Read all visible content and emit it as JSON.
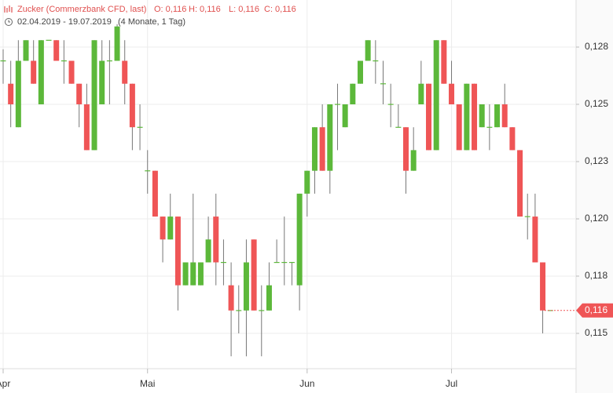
{
  "chart_data": {
    "type": "candlestick",
    "title": "Zucker (Commerzbank CFD, last)",
    "ohlc_labels": [
      "O: 0,116",
      "H: 0,116",
      "L: 0,116",
      "C: 0,116"
    ],
    "period": "02.04.2019 - 19.07.2019",
    "period_length": "(4 Monate, 1 Tag)",
    "up_color": "#5cb83a",
    "down_color": "#ef5556",
    "grid": true,
    "ylim": [
      0.1135,
      0.1295
    ],
    "yticks": [
      {
        "value": 0.1275,
        "label": "0,128"
      },
      {
        "value": 0.125,
        "label": "0,125"
      },
      {
        "value": 0.1225,
        "label": "0,123"
      },
      {
        "value": 0.12,
        "label": "0,120"
      },
      {
        "value": 0.1175,
        "label": "0,118"
      },
      {
        "value": 0.115,
        "label": "0,115"
      }
    ],
    "last": {
      "value": 0.116,
      "label": "0,116"
    },
    "categories": [
      "Apr",
      null,
      null,
      null,
      null,
      null,
      null,
      null,
      null,
      null,
      null,
      null,
      null,
      null,
      null,
      null,
      null,
      null,
      null,
      "Mai",
      null,
      null,
      null,
      null,
      null,
      null,
      null,
      null,
      null,
      null,
      null,
      null,
      null,
      null,
      null,
      null,
      null,
      null,
      null,
      null,
      "Jun",
      null,
      null,
      null,
      null,
      null,
      null,
      null,
      null,
      null,
      null,
      null,
      null,
      null,
      null,
      null,
      null,
      null,
      null,
      "Jul",
      null,
      null,
      null,
      null,
      null,
      null,
      null,
      null,
      null,
      null,
      null,
      null,
      null
    ],
    "open": [
      0.1269,
      0.1259,
      0.124,
      0.1269,
      0.1269,
      0.125,
      0.1278,
      0.1278,
      0.1269,
      0.1269,
      0.1259,
      0.125,
      0.123,
      0.125,
      0.1269,
      0.1269,
      0.1269,
      0.1259,
      0.124,
      0.1221,
      0.1221,
      0.1201,
      0.1191,
      0.1201,
      0.1171,
      0.1171,
      0.1171,
      0.1181,
      0.1201,
      0.1181,
      0.1171,
      0.116,
      0.116,
      0.1191,
      0.116,
      0.116,
      0.1181,
      0.1181,
      0.1181,
      0.1171,
      0.1211,
      0.1221,
      0.124,
      0.1221,
      0.125,
      0.124,
      0.125,
      0.1259,
      0.1269,
      0.1269,
      0.1259,
      0.125,
      0.124,
      0.124,
      0.1221,
      0.125,
      0.1259,
      0.123,
      0.1278,
      0.1259,
      0.125,
      0.123,
      0.1259,
      0.124,
      0.124,
      0.124,
      0.125,
      0.124,
      0.123,
      0.1201,
      0.1201,
      0.1181,
      0.116
    ],
    "high": [
      0.1274,
      0.1269,
      0.1278,
      0.1278,
      0.1278,
      0.1278,
      0.1278,
      0.1278,
      0.1278,
      0.1269,
      0.1259,
      0.1259,
      0.1278,
      0.1278,
      0.1278,
      0.1285,
      0.1278,
      0.1259,
      0.125,
      0.123,
      0.1221,
      0.1201,
      0.1211,
      0.1201,
      0.1181,
      0.1211,
      0.1181,
      0.1201,
      0.1211,
      0.1191,
      0.1181,
      0.1171,
      0.1191,
      0.1191,
      0.1171,
      0.1181,
      0.1191,
      0.1201,
      0.1181,
      0.1211,
      0.1221,
      0.124,
      0.125,
      0.125,
      0.1259,
      0.125,
      0.1259,
      0.1269,
      0.1278,
      0.1278,
      0.1269,
      0.1259,
      0.125,
      0.124,
      0.124,
      0.1269,
      0.1259,
      0.1278,
      0.1278,
      0.1269,
      0.125,
      0.1259,
      0.1259,
      0.125,
      0.125,
      0.125,
      0.1259,
      0.124,
      0.123,
      0.1211,
      0.1211,
      0.1181,
      0.116
    ],
    "low": [
      0.1259,
      0.124,
      0.124,
      0.1269,
      0.1259,
      0.125,
      0.1278,
      0.1269,
      0.1259,
      0.1259,
      0.124,
      0.123,
      0.123,
      0.125,
      0.125,
      0.1269,
      0.125,
      0.123,
      0.123,
      0.1211,
      0.1201,
      0.1181,
      0.1191,
      0.116,
      0.1171,
      0.1171,
      0.1171,
      0.1181,
      0.1171,
      0.1171,
      0.114,
      0.115,
      0.114,
      0.116,
      0.114,
      0.116,
      0.1181,
      0.1171,
      0.1171,
      0.116,
      0.1201,
      0.1211,
      0.1221,
      0.1211,
      0.123,
      0.124,
      0.125,
      0.1259,
      0.1269,
      0.1259,
      0.125,
      0.124,
      0.124,
      0.1211,
      0.1221,
      0.125,
      0.123,
      0.123,
      0.1259,
      0.125,
      0.123,
      0.123,
      0.123,
      0.124,
      0.123,
      0.124,
      0.124,
      0.123,
      0.1201,
      0.1191,
      0.1181,
      0.115,
      0.116
    ],
    "close": [
      0.1269,
      0.125,
      0.1269,
      0.1278,
      0.1259,
      0.1278,
      0.1278,
      0.1269,
      0.1269,
      0.1259,
      0.125,
      0.123,
      0.1278,
      0.1269,
      0.1269,
      0.1284,
      0.1259,
      0.124,
      0.124,
      0.1221,
      0.1201,
      0.1191,
      0.1201,
      0.1171,
      0.1181,
      0.1181,
      0.1181,
      0.1191,
      0.1181,
      0.1181,
      0.116,
      0.116,
      0.1181,
      0.116,
      0.116,
      0.1171,
      0.1181,
      0.1181,
      0.1181,
      0.1211,
      0.1221,
      0.124,
      0.1221,
      0.125,
      0.125,
      0.125,
      0.1259,
      0.1269,
      0.1278,
      0.1269,
      0.1259,
      0.125,
      0.124,
      0.1221,
      0.123,
      0.1259,
      0.123,
      0.1278,
      0.1259,
      0.125,
      0.123,
      0.1259,
      0.123,
      0.125,
      0.124,
      0.125,
      0.124,
      0.123,
      0.1201,
      0.1201,
      0.1181,
      0.116,
      0.116
    ]
  }
}
